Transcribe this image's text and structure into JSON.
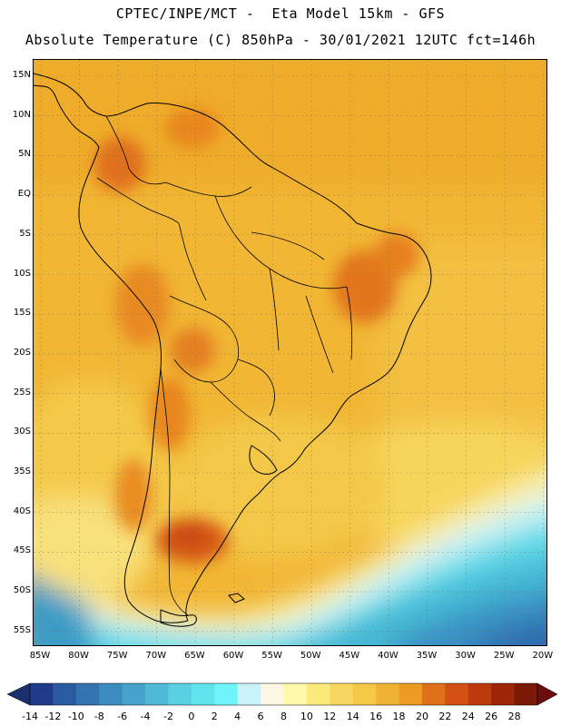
{
  "header": {
    "line1": "CPTEC/INPE/MCT -  Eta Model 15km - GFS",
    "line2": "Absolute Temperature (C) 850hPa - 30/01/2021 12UTC fct=146h"
  },
  "map": {
    "lat_labels": [
      "15N",
      "10N",
      "5N",
      "EQ",
      "5S",
      "10S",
      "15S",
      "20S",
      "25S",
      "30S",
      "35S",
      "40S",
      "45S",
      "50S",
      "55S"
    ],
    "lon_labels": [
      "85W",
      "80W",
      "75W",
      "70W",
      "65W",
      "60W",
      "55W",
      "50W",
      "45W",
      "40W",
      "35W",
      "30W",
      "25W",
      "20W"
    ],
    "variable": "Absolute Temperature",
    "units": "C",
    "level": "850hPa"
  },
  "colorbar": {
    "labels": [
      "-14",
      "-12",
      "-10",
      "-8",
      "-6",
      "-4",
      "-2",
      "0",
      "2",
      "4",
      "6",
      "8",
      "10",
      "12",
      "14",
      "16",
      "18",
      "20",
      "22",
      "24",
      "26",
      "28"
    ],
    "colors": [
      "#203b8a",
      "#2a5aa0",
      "#3472b0",
      "#3c8cc0",
      "#45a3cc",
      "#4fb9d6",
      "#5bd0e2",
      "#60e4ee",
      "#6ff4fa",
      "#c8f3fa",
      "#fdf6e2",
      "#fdf9a8",
      "#fbe97c",
      "#f8d760",
      "#f5c948",
      "#f0b232",
      "#eb9a22",
      "#e0701a",
      "#d35112",
      "#bd3a0e",
      "#9e2508",
      "#7a1a06"
    ],
    "under_color": "#1a2f6e",
    "over_color": "#6a0e0e"
  }
}
